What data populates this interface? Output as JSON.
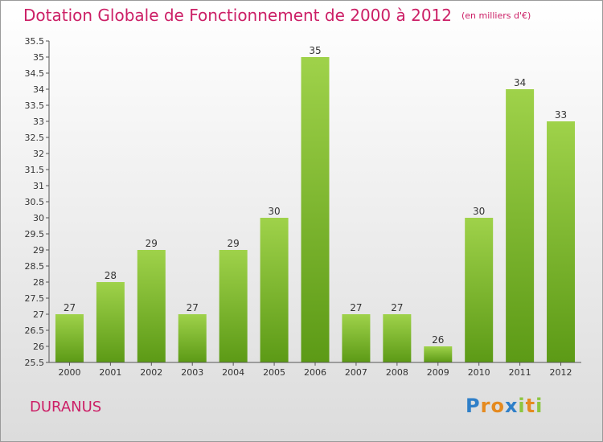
{
  "chart_data": {
    "type": "bar",
    "title": "Dotation Globale de Fonctionnement de 2000 à 2012",
    "subtitle": "(en milliers d'€)",
    "xlabel": "",
    "ylabel": "",
    "categories": [
      "2000",
      "2001",
      "2002",
      "2003",
      "2004",
      "2005",
      "2006",
      "2007",
      "2008",
      "2009",
      "2010",
      "2011",
      "2012"
    ],
    "values": [
      27,
      28,
      29,
      27,
      29,
      30,
      35,
      27,
      27,
      26,
      30,
      34,
      33
    ],
    "data_labels": [
      "27",
      "28",
      "29",
      "27",
      "29",
      "30",
      "35",
      "27",
      "27",
      "26",
      "30",
      "34",
      "33"
    ],
    "ylim": [
      25.5,
      35.5
    ],
    "yticks": [
      "25.5",
      "26",
      "26.5",
      "27",
      "27.5",
      "28",
      "28.5",
      "29",
      "29.5",
      "30",
      "30.5",
      "31",
      "31.5",
      "32",
      "32.5",
      "33",
      "33.5",
      "34",
      "34.5",
      "35",
      "35.5"
    ],
    "grid": false,
    "bar_color": "#7fba2a",
    "title_color": "#cc1f66"
  },
  "footer": {
    "commune": "DURANUS",
    "logo": {
      "letters": [
        "P",
        "r",
        "o",
        "x",
        "i",
        "t",
        "i"
      ],
      "colors": [
        "#2f7fc8",
        "#e58a1f",
        "#e58a1f",
        "#2f7fc8",
        "#8cc63f",
        "#e58a1f",
        "#8cc63f"
      ]
    }
  }
}
